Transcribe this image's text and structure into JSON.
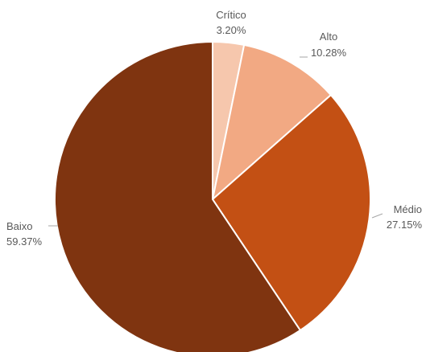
{
  "chart_data": {
    "type": "pie",
    "title": "",
    "start_angle_deg": 0,
    "direction": "clockwise",
    "slices": [
      {
        "label": "Crítico",
        "value": 3.2,
        "value_label": "3.20%",
        "color": "#f6c7ad"
      },
      {
        "label": "Alto",
        "value": 10.28,
        "value_label": "10.28%",
        "color": "#f2a983"
      },
      {
        "label": "Médio",
        "value": 27.15,
        "value_label": "27.15%",
        "color": "#c35014"
      },
      {
        "label": "Baixo",
        "value": 59.37,
        "value_label": "59.37%",
        "color": "#7f3410"
      }
    ],
    "legend": "none",
    "data_labels": "outside-with-leader-lines"
  }
}
